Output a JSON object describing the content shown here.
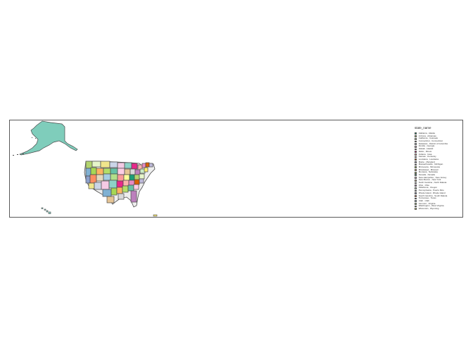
{
  "legend": {
    "title": "state_name",
    "items": [
      {
        "label": "Alabama , Alaska",
        "color": "#1b9e77"
      },
      {
        "label": "Arizona , Arkansas",
        "color": "#b3d46e"
      },
      {
        "label": "California , Colorado",
        "color": "#e6f5c9"
      },
      {
        "label": "Connecticut , Connecticut",
        "color": "#f0e68c"
      },
      {
        "label": "Delaware , District of Columbia",
        "color": "#cbd5e8"
      },
      {
        "label": "Florida , Georgia",
        "color": "#f4cae4"
      },
      {
        "label": "Hawaii , Hawaii",
        "color": "#8dd3c7"
      },
      {
        "label": "Idaho , Illinois",
        "color": "#e7298a"
      },
      {
        "label": "Indiana , Iowa",
        "color": "#fbb4ae"
      },
      {
        "label": "Kansas , Kentucky",
        "color": "#e78ac3"
      },
      {
        "label": "Louisiana , Louisiana",
        "color": "#d95f02"
      },
      {
        "label": "Maine , Maryland",
        "color": "#bebada"
      },
      {
        "label": "Massachusetts , Michigan",
        "color": "#80b1d3"
      },
      {
        "label": "Minnesota , Minnesota",
        "color": "#a6d854"
      },
      {
        "label": "Mississippi , Missouri",
        "color": "#fdb462"
      },
      {
        "label": "Montana , Nebraska",
        "color": "#b3de69"
      },
      {
        "label": "Nevada , Nevada",
        "color": "#66c2a5"
      },
      {
        "label": "New Hampshire , New Jersey",
        "color": "#fccde5"
      },
      {
        "label": "New Mexico , New York",
        "color": "#e5c494"
      },
      {
        "label": "North Carolina , North Dakota",
        "color": "#d9d9d9"
      },
      {
        "label": "Ohio , Ohio",
        "color": "#bc80bd"
      },
      {
        "label": "Oklahoma , Oregon",
        "color": "#ccebc5"
      },
      {
        "label": "Pennsylvania , Puerto Rico",
        "color": "#ffed6f"
      },
      {
        "label": "Rhode Island , Rhode Island",
        "color": "#8da0cb"
      },
      {
        "label": "South Carolina , South Dakota",
        "color": "#fc8d62"
      },
      {
        "label": "Tennessee , Texas",
        "color": "#e5d8bd"
      },
      {
        "label": "Utah , Utah",
        "color": "#a6cee3"
      },
      {
        "label": "Vermont , Virginia",
        "color": "#b2df8a"
      },
      {
        "label": "Washington , West Virginia",
        "color": "#fb9a99"
      },
      {
        "label": "Wisconsin , Wyoming",
        "color": "#ffff99"
      }
    ]
  },
  "map": {
    "alaska_color": "#7fcdbb",
    "hawaii_color": "#8dd3c7",
    "puerto_rico_color": "#ffed6f",
    "state_colors": [
      "#b3d46e",
      "#e6f5c9",
      "#f0e68c",
      "#cbd5e8",
      "#f4cae4",
      "#8dd3c7",
      "#e7298a",
      "#fbb4ae",
      "#e78ac3",
      "#d95f02",
      "#bebada",
      "#80b1d3",
      "#a6d854",
      "#fdb462",
      "#b3de69",
      "#66c2a5",
      "#fccde5",
      "#e5c494",
      "#d9d9d9",
      "#bc80bd",
      "#ccebc5",
      "#ffed6f",
      "#8da0cb",
      "#fc8d62",
      "#e5d8bd",
      "#a6cee3",
      "#b2df8a",
      "#fb9a99",
      "#ffff99",
      "#1b9e77"
    ]
  }
}
